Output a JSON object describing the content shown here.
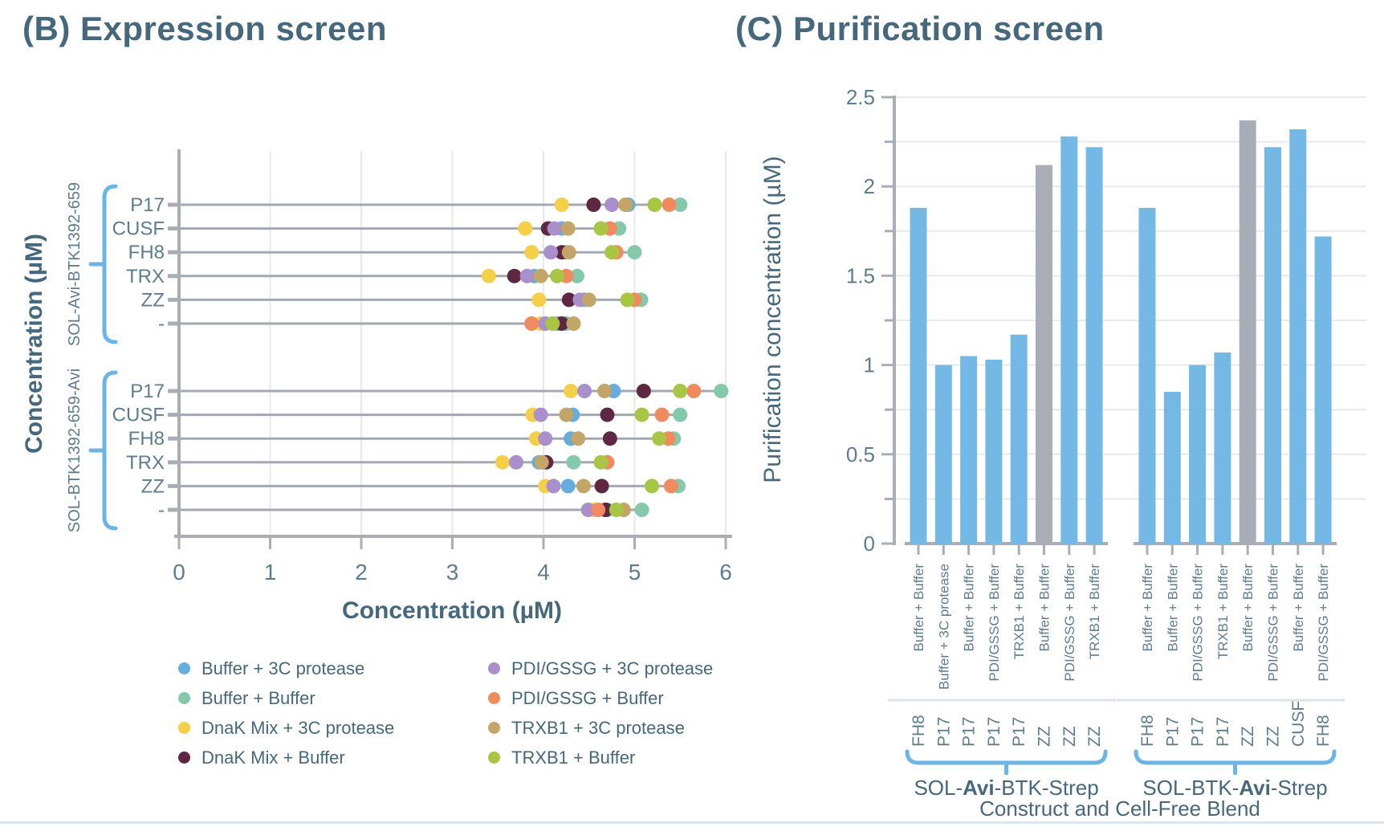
{
  "panelB": {
    "title_bind_note": "see chart_data.0.title"
  },
  "panelC": {
    "title_bind_note": "see chart_data.1.title"
  },
  "colors": {
    "title": "#45687c",
    "text": "#45687c",
    "text_light": "#5d7d8e",
    "axis": "#a9aeb6",
    "rowline": "#a2a9b3",
    "grid": "#e7e9ed",
    "brace": "#6ab5e8",
    "separator": "#dfe2e6",
    "bottom_rule": "#d9e7ef",
    "bar_blue": "#74b9e6",
    "bar_gray": "#a9aeb6"
  },
  "chart_data": [
    {
      "type": "scatter",
      "panel": "B",
      "title": "(B) Expression screen",
      "xlabel": "Concentration (µM)",
      "ylabel": "Concentration (µM)",
      "xlim": [
        0,
        6
      ],
      "x_ticks": [
        0,
        1,
        2,
        3,
        4,
        5,
        6
      ],
      "grid": true,
      "series": [
        {
          "name": "Buffer + 3C protease",
          "color": "#63aede"
        },
        {
          "name": "Buffer + Buffer",
          "color": "#85c9ab"
        },
        {
          "name": "DnaK Mix + 3C protease",
          "color": "#f5cf47"
        },
        {
          "name": "DnaK Mix + Buffer",
          "color": "#5e2742"
        },
        {
          "name": "PDI/GSSG + 3C protease",
          "color": "#a98fcb"
        },
        {
          "name": "PDI/GSSG + Buffer",
          "color": "#f08a5f"
        },
        {
          "name": "TRXB1 + 3C protease",
          "color": "#c3a567"
        },
        {
          "name": "TRXB1 + Buffer",
          "color": "#a8c643"
        }
      ],
      "groups": [
        {
          "label": "SOL-Avi-BTK1392-659",
          "categories": [
            "P17",
            "CUSF",
            "FH8",
            "TRX",
            "ZZ",
            "-"
          ],
          "rows": [
            [
              4.93,
              5.5,
              4.2,
              4.55,
              4.75,
              5.38,
              4.9,
              5.22
            ],
            [
              4.2,
              4.83,
              3.8,
              4.05,
              4.12,
              4.73,
              4.27,
              4.63
            ],
            [
              4.25,
              5.0,
              3.87,
              4.2,
              4.08,
              4.8,
              4.28,
              4.75
            ],
            [
              3.9,
              4.37,
              3.4,
              3.68,
              3.82,
              4.25,
              3.97,
              4.15
            ],
            [
              4.45,
              5.07,
              3.95,
              4.28,
              4.4,
              5.0,
              4.5,
              4.92
            ],
            [
              4.15,
              4.25,
              3.97,
              4.2,
              4.02,
              3.87,
              4.33,
              4.1
            ]
          ]
        },
        {
          "label": "SOL-BTK1392-659-Avi",
          "categories": [
            "P17",
            "CUSF",
            "FH8",
            "TRX",
            "ZZ",
            "-"
          ],
          "rows": [
            [
              4.77,
              5.95,
              4.3,
              5.1,
              4.45,
              5.65,
              4.67,
              5.5
            ],
            [
              4.32,
              5.5,
              3.88,
              4.7,
              3.97,
              5.3,
              4.25,
              5.08
            ],
            [
              4.3,
              5.43,
              3.92,
              4.73,
              4.02,
              5.37,
              4.38,
              5.27
            ],
            [
              3.95,
              4.33,
              3.55,
              4.03,
              3.7,
              4.7,
              3.98,
              4.63
            ],
            [
              4.27,
              5.48,
              4.02,
              4.64,
              4.11,
              5.4,
              4.44,
              5.19
            ],
            [
              4.7,
              5.08,
              4.55,
              4.68,
              4.49,
              4.6,
              4.88,
              4.8
            ]
          ]
        }
      ]
    },
    {
      "type": "bar",
      "panel": "C",
      "title": "(C) Purification screen",
      "xlabel": "Construct and Cell-Free Blend",
      "ylabel": "Purification concentration (µM)",
      "ylim": [
        0,
        2.5
      ],
      "y_ticks": [
        0,
        0.5,
        1,
        1.5,
        2,
        2.5
      ],
      "grid": true,
      "bar_colors": {
        "default": "#74b9e6",
        "highlight": "#a9aeb6"
      },
      "groups": [
        {
          "label_prefix": "SOL-",
          "label_bold": "Avi",
          "label_suffix": "-BTK-Strep",
          "bars": [
            {
              "construct": "FH8",
              "blend": "Buffer + Buffer",
              "value": 1.88,
              "highlight": false
            },
            {
              "construct": "P17",
              "blend": "Buffer + 3C protease",
              "value": 1.0,
              "highlight": false
            },
            {
              "construct": "P17",
              "blend": "Buffer + Buffer",
              "value": 1.05,
              "highlight": false
            },
            {
              "construct": "P17",
              "blend": "PDI/GSSG + Buffer",
              "value": 1.03,
              "highlight": false
            },
            {
              "construct": "P17",
              "blend": "TRXB1 + Buffer",
              "value": 1.17,
              "highlight": false
            },
            {
              "construct": "ZZ",
              "blend": "Buffer + Buffer",
              "value": 2.12,
              "highlight": true
            },
            {
              "construct": "ZZ",
              "blend": "PDI/GSSG + Buffer",
              "value": 2.28,
              "highlight": false
            },
            {
              "construct": "ZZ",
              "blend": "TRXB1 + Buffer",
              "value": 2.22,
              "highlight": false
            }
          ]
        },
        {
          "label_prefix": "SOL-BTK-",
          "label_bold": "Avi",
          "label_suffix": "-Strep",
          "bars": [
            {
              "construct": "FH8",
              "blend": "Buffer + Buffer",
              "value": 1.88,
              "highlight": false
            },
            {
              "construct": "P17",
              "blend": "Buffer + Buffer",
              "value": 0.85,
              "highlight": false
            },
            {
              "construct": "P17",
              "blend": "PDI/GSSG + Buffer",
              "value": 1.0,
              "highlight": false
            },
            {
              "construct": "P17",
              "blend": "TRXB1 + Buffer",
              "value": 1.07,
              "highlight": false
            },
            {
              "construct": "ZZ",
              "blend": "Buffer + Buffer",
              "value": 2.37,
              "highlight": true
            },
            {
              "construct": "ZZ",
              "blend": "PDI/GSSG + Buffer",
              "value": 2.22,
              "highlight": false
            },
            {
              "construct": "CUSF",
              "blend": "Buffer + Buffer",
              "value": 2.32,
              "highlight": false
            },
            {
              "construct": "FH8",
              "blend": "PDI/GSSG + Buffer",
              "value": 1.72,
              "highlight": false
            }
          ]
        }
      ]
    }
  ]
}
